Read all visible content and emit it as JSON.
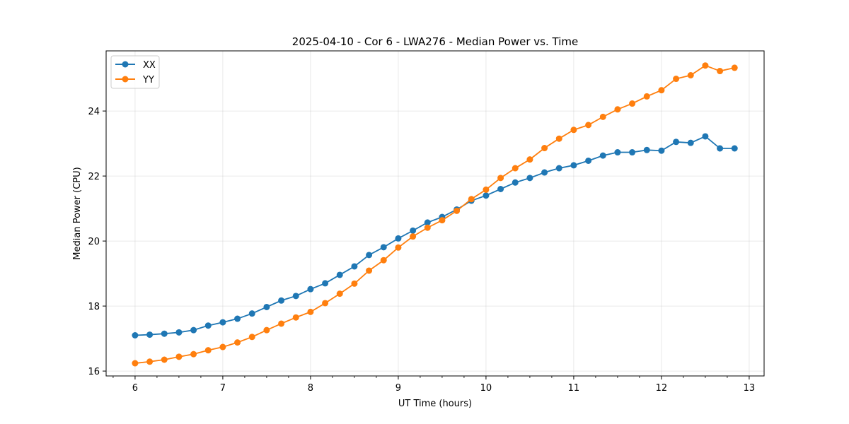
{
  "chart_data": {
    "type": "line",
    "title": "2025-04-10 - Cor 6 - LWA276 - Median Power vs. Time",
    "xlabel": "UT Time (hours)",
    "ylabel": "Median Power (CPU)",
    "xlim": [
      5.67,
      13.17
    ],
    "ylim": [
      15.85,
      25.85
    ],
    "xticks": [
      6,
      7,
      8,
      9,
      10,
      11,
      12,
      13
    ],
    "xtick_labels": [
      "6",
      "7",
      "8",
      "9",
      "10",
      "11",
      "12",
      "13"
    ],
    "yticks": [
      16,
      18,
      20,
      22,
      24
    ],
    "ytick_labels": [
      "16",
      "18",
      "20",
      "22",
      "24"
    ],
    "grid": true,
    "legend_position": "top-left",
    "x": [
      6.0,
      6.1667,
      6.3333,
      6.5,
      6.6667,
      6.8333,
      7.0,
      7.1667,
      7.3333,
      7.5,
      7.6667,
      7.8333,
      8.0,
      8.1667,
      8.3333,
      8.5,
      8.6667,
      8.8333,
      9.0,
      9.1667,
      9.3333,
      9.5,
      9.6667,
      9.8333,
      10.0,
      10.1667,
      10.3333,
      10.5,
      10.6667,
      10.8333,
      11.0,
      11.1667,
      11.3333,
      11.5,
      11.6667,
      11.8333,
      12.0,
      12.1667,
      12.3333,
      12.5,
      12.6667,
      12.8333
    ],
    "series": [
      {
        "name": "XX",
        "color": "#1f77b4",
        "values": [
          17.1,
          17.12,
          17.15,
          17.19,
          17.26,
          17.4,
          17.5,
          17.61,
          17.77,
          17.97,
          18.17,
          18.31,
          18.52,
          18.7,
          18.96,
          19.22,
          19.57,
          19.81,
          20.08,
          20.32,
          20.57,
          20.74,
          20.97,
          21.24,
          21.4,
          21.6,
          21.8,
          21.94,
          22.11,
          22.24,
          22.33,
          22.47,
          22.63,
          22.73,
          22.73,
          22.8,
          22.78,
          23.05,
          23.02,
          23.22,
          22.85,
          22.85
        ]
      },
      {
        "name": "YY",
        "color": "#ff7f0e",
        "values": [
          16.24,
          16.29,
          16.35,
          16.44,
          16.52,
          16.64,
          16.74,
          16.88,
          17.05,
          17.26,
          17.46,
          17.65,
          17.82,
          18.09,
          18.38,
          18.69,
          19.09,
          19.41,
          19.8,
          20.14,
          20.41,
          20.64,
          20.93,
          21.29,
          21.58,
          21.94,
          22.24,
          22.51,
          22.86,
          23.15,
          23.42,
          23.57,
          23.82,
          24.05,
          24.23,
          24.45,
          24.64,
          24.99,
          25.1,
          25.4,
          25.23,
          25.33
        ]
      }
    ]
  }
}
